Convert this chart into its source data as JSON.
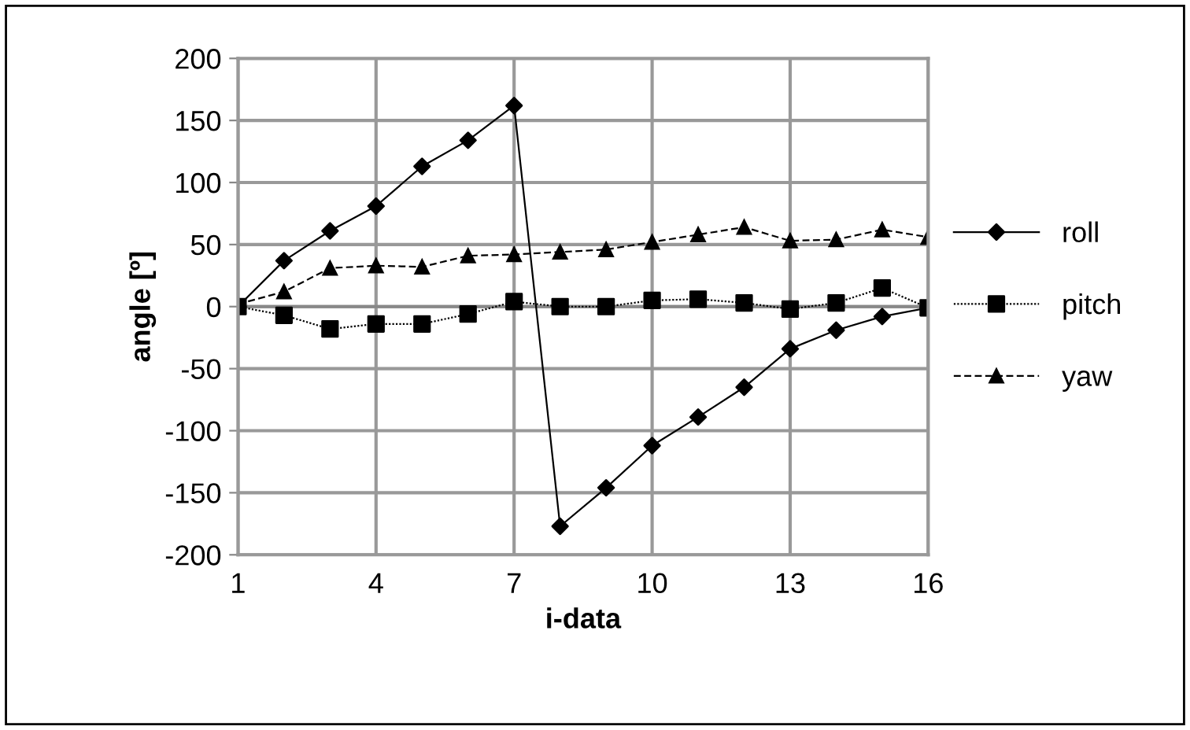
{
  "chart_data": {
    "type": "line",
    "xlabel": "i-data",
    "ylabel": "angle [º]",
    "x": [
      1,
      2,
      3,
      4,
      5,
      6,
      7,
      8,
      9,
      10,
      11,
      12,
      13,
      14,
      15,
      16
    ],
    "xlim": [
      1,
      16
    ],
    "xticks": [
      1,
      4,
      7,
      10,
      13,
      16
    ],
    "ylim": [
      -200,
      200
    ],
    "yticks": [
      -200,
      -150,
      -100,
      -50,
      0,
      50,
      100,
      150,
      200
    ],
    "grid": true,
    "legend": "right",
    "series": [
      {
        "name": "roll",
        "color": "#000000",
        "marker": "diamond",
        "line_style": "solid",
        "values": [
          0,
          37,
          61,
          81,
          113,
          134,
          162,
          -177,
          -146,
          -112,
          -89,
          -65,
          -34,
          -19,
          -8,
          -1
        ]
      },
      {
        "name": "pitch",
        "color": "#000000",
        "marker": "square",
        "line_style": "dotted",
        "values": [
          0,
          -7,
          -18,
          -14,
          -14,
          -6,
          4,
          0,
          0,
          5,
          6,
          3,
          -2,
          3,
          15,
          -1
        ]
      },
      {
        "name": "yaw",
        "color": "#000000",
        "marker": "triangle",
        "line_style": "dashed",
        "values": [
          2,
          12,
          31,
          33,
          32,
          41,
          42,
          44,
          46,
          52,
          58,
          64,
          53,
          54,
          62,
          56
        ]
      }
    ]
  }
}
